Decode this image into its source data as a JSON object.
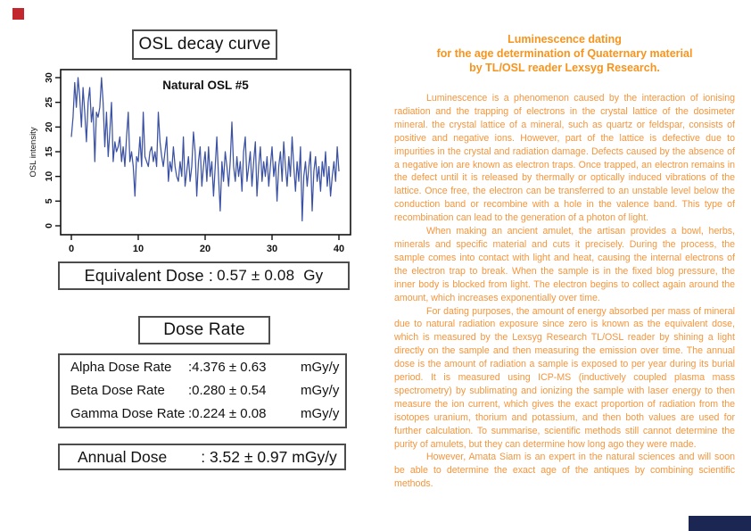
{
  "left": {
    "chart_title": "OSL decay curve",
    "equivalent_dose": {
      "label": "Equivalent Dose :",
      "value": "0.57 ± 0.08",
      "unit": "Gy"
    },
    "dose_rate_title": "Dose Rate",
    "dose_rates": [
      {
        "label": "Alpha Dose Rate",
        "value": ":4.376 ± 0.63",
        "unit": "mGy/y"
      },
      {
        "label": "Beta Dose Rate",
        "value": ":0.280 ± 0.54",
        "unit": "mGy/y"
      },
      {
        "label": "Gamma Dose Rate",
        "value": ":0.224 ± 0.08",
        "unit": "mGy/y"
      }
    ],
    "annual_dose": {
      "label": "Annual Dose",
      "value": ": 3.52 ± 0.97 mGy/y"
    }
  },
  "chart_data": {
    "type": "line",
    "title": "Natural OSL #5",
    "xlabel": "",
    "ylabel": "OSL intensity",
    "xlim": [
      0,
      40
    ],
    "ylim": [
      0,
      30
    ],
    "xticks": [
      0,
      10,
      20,
      30,
      40
    ],
    "yticks": [
      0,
      5,
      10,
      15,
      20,
      25,
      30
    ],
    "grid": false,
    "legend": "none",
    "x_step": 0.25,
    "line_color": "#3b51a3",
    "values": [
      18,
      22,
      29,
      24,
      30,
      26,
      20,
      28,
      23,
      17,
      25,
      28,
      21,
      24,
      13,
      23,
      22,
      24,
      30,
      25,
      16,
      23,
      14,
      19,
      25,
      13,
      17,
      15,
      16,
      18,
      13,
      16,
      12,
      18,
      23,
      13,
      15,
      12,
      6,
      14,
      13,
      18,
      12,
      23,
      14,
      13,
      12,
      15,
      16,
      13,
      15,
      12,
      23,
      17,
      14,
      12,
      15,
      18,
      9,
      13,
      11,
      16,
      12,
      10,
      9,
      13,
      10,
      18,
      8,
      11,
      14,
      9,
      12,
      19,
      15,
      6,
      13,
      16,
      8,
      12,
      15,
      9,
      16,
      10,
      13,
      6,
      12,
      18,
      10,
      3,
      13,
      9,
      15,
      12,
      8,
      13,
      21,
      12,
      9,
      14,
      10,
      13,
      7,
      15,
      18,
      9,
      12,
      15,
      8,
      13,
      17,
      6,
      12,
      16,
      9,
      13,
      10,
      14,
      8,
      12,
      16,
      10,
      13,
      5,
      12,
      15,
      9,
      17,
      12,
      8,
      14,
      10,
      18,
      12,
      7,
      13,
      9,
      16,
      1,
      10,
      13,
      8,
      12,
      15,
      3,
      11,
      14,
      9,
      12,
      7,
      13,
      10,
      15,
      8,
      12,
      6,
      10,
      13,
      9,
      16,
      11
    ]
  },
  "right": {
    "heading_lines": [
      "Luminescence dating",
      "for the age determination of Quaternary material",
      "by TL/OSL reader Lexsyg Research."
    ],
    "paragraphs": [
      "Luminescence is a phenomenon caused by the interaction of ionising radiation and the trapping of electrons in the crystal lattice of the dosimeter mineral. the crystal lattice of a mineral, such as quartz or feldspar, consists of positive and negative ions. However, part of the lattice is defective due to impurities in the crystal and radiation damage. Defects caused by the absence of a negative ion are known as electron traps. Once trapped, an electron remains in the defect until it is released by thermally or optically induced vibrations of the lattice. Once free, the electron can be transferred to an unstable level below the conduction band or recombine with a hole in the valence band. This type of recombination can lead to the generation of a photon of light.",
      "When making an ancient amulet, the artisan provides a bowl, herbs, minerals and specific material and cuts it precisely. During the process, the sample comes into contact with light and heat, causing the internal electrons of the electron trap to break. When the sample is in the fixed blog pressure, the inner body is blocked from light. The electron begins to collect again around the amount, which increases exponentially over time.",
      "For dating purposes, the amount of energy absorbed per mass of mineral due to natural radiation exposure since zero is known as the equivalent dose, which is measured by the Lexsyg Research TL/OSL reader by shining a light directly on the sample and then measuring the emission over time. The annual dose is the amount of radiation a sample is exposed to per year during its burial period. It is measured using ICP-MS (inductively coupled plasma mass spectrometry) by sublimating and ionizing the sample with laser energy to then measure the ion current, which gives the exact proportion of radiation from the isotopes uranium, thorium and potassium, and then both values are used for further calculation. To summarise, scientific methods still cannot determine the purity of amulets, but they can determine how long ago they were made.",
      "However, Amata Siam is an expert in the natural sciences and will soon be able to determine the exact age of the antiques by combining scientific methods."
    ]
  },
  "colors": {
    "accent_orange": "#f7941d",
    "body_orange": "#f5953b",
    "line_blue": "#3b51a3",
    "box_border": "#4d4d4d",
    "corner_red": "#c1272d",
    "corner_navy": "#1b2653"
  }
}
